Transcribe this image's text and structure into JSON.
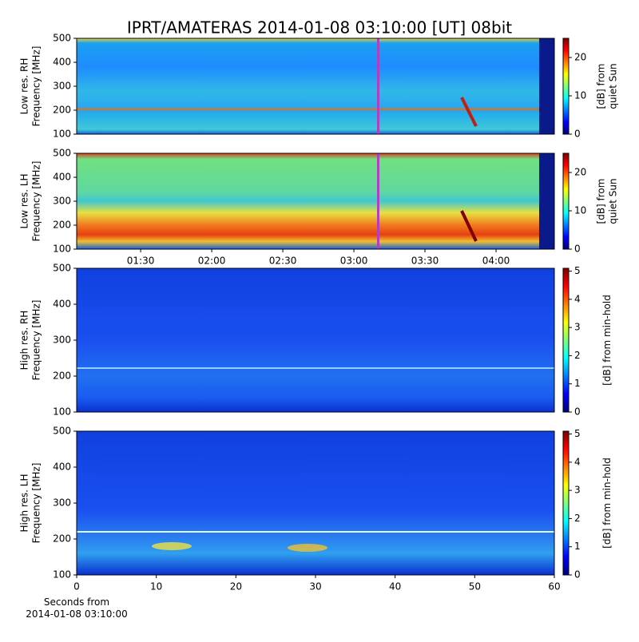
{
  "title": "IPRT/AMATERAS 2014-01-08 03:10:00 [UT]   08bit",
  "chart_data": [
    {
      "type": "heatmap",
      "ylabel": [
        "Low res. RH",
        "Frequency [MHz]"
      ],
      "ylim": [
        100,
        500
      ],
      "yticks": [
        100,
        200,
        300,
        400,
        500
      ],
      "colormap": "jet",
      "clim": [
        0,
        25
      ],
      "cticks": [
        0,
        10,
        20
      ],
      "clabel": [
        "[dB] from",
        "quiet Sun"
      ]
    },
    {
      "type": "heatmap",
      "ylabel": [
        "Low res. LH",
        "Frequency [MHz]"
      ],
      "ylim": [
        100,
        500
      ],
      "yticks": [
        100,
        200,
        300,
        400,
        500
      ],
      "xlim": [
        63,
        264.6
      ],
      "xticks": [
        {
          "value": 90,
          "label": "01:30"
        },
        {
          "value": 120,
          "label": "02:00"
        },
        {
          "value": 150,
          "label": "02:30"
        },
        {
          "value": 180,
          "label": "03:00"
        },
        {
          "value": 210,
          "label": "03:30"
        },
        {
          "value": 240,
          "label": "04:00"
        }
      ],
      "colormap": "jet",
      "clim": [
        0,
        25
      ],
      "cticks": [
        0,
        10,
        20
      ],
      "clabel": [
        "[dB] from",
        "quiet Sun"
      ]
    },
    {
      "type": "heatmap",
      "ylabel": [
        "High res. RH",
        "Frequency [MHz]"
      ],
      "ylim": [
        100,
        500
      ],
      "yticks": [
        100,
        200,
        300,
        400,
        500
      ],
      "colormap": "jet",
      "clim": [
        0,
        5.1
      ],
      "cticks": [
        0,
        1,
        2,
        3,
        4,
        5
      ],
      "clabel": [
        "[dB] from min-hold"
      ]
    },
    {
      "type": "heatmap",
      "ylabel": [
        "High res. LH",
        "Frequency [MHz]"
      ],
      "ylim": [
        100,
        500
      ],
      "yticks": [
        100,
        200,
        300,
        400,
        500
      ],
      "xlim": [
        0,
        60
      ],
      "xticks": [
        0,
        10,
        20,
        30,
        40,
        50,
        60
      ],
      "xlabel": [
        "Seconds from",
        "2014-01-08 03:10:00"
      ],
      "colormap": "jet",
      "clim": [
        0,
        5.1
      ],
      "cticks": [
        0,
        1,
        2,
        3,
        4,
        5
      ],
      "clabel": [
        "[dB] from min-hold"
      ]
    }
  ]
}
